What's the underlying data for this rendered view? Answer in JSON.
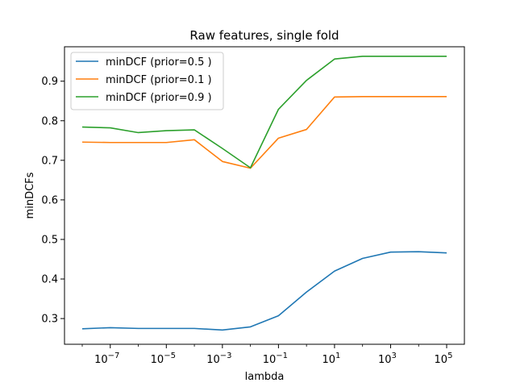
{
  "chart_data": {
    "type": "line",
    "title": "Raw features, single fold",
    "xlabel": "lambda",
    "ylabel": "minDCFs",
    "x_scale": "log",
    "x": [
      1e-08,
      1e-07,
      1e-06,
      1e-05,
      0.0001,
      0.001,
      0.01,
      0.1,
      1,
      10,
      100,
      1000,
      10000,
      100000
    ],
    "x_ticks": [
      1e-07,
      1e-05,
      0.001,
      0.1,
      10,
      1000,
      100000
    ],
    "x_tick_labels": [
      {
        "base": "10",
        "exp": "−7"
      },
      {
        "base": "10",
        "exp": "−5"
      },
      {
        "base": "10",
        "exp": "−3"
      },
      {
        "base": "10",
        "exp": "−1"
      },
      {
        "base": "10",
        "exp": "1"
      },
      {
        "base": "10",
        "exp": "3"
      },
      {
        "base": "10",
        "exp": "5"
      }
    ],
    "y_ticks": [
      0.3,
      0.4,
      0.5,
      0.6,
      0.7,
      0.8,
      0.9
    ],
    "y_tick_labels": [
      "0.3",
      "0.4",
      "0.5",
      "0.6",
      "0.7",
      "0.8",
      "0.9"
    ],
    "ylim": [
      0.235,
      0.987
    ],
    "grid": false,
    "legend_position": "top-left",
    "series": [
      {
        "name": "minDCF (prior=0.5 )",
        "color": "#1f77b4",
        "values": [
          0.274,
          0.277,
          0.275,
          0.275,
          0.275,
          0.271,
          0.279,
          0.307,
          0.367,
          0.42,
          0.452,
          0.468,
          0.469,
          0.466
        ]
      },
      {
        "name": "minDCF (prior=0.1 )",
        "color": "#ff7f0e",
        "values": [
          0.746,
          0.745,
          0.745,
          0.745,
          0.752,
          0.697,
          0.68,
          0.756,
          0.778,
          0.86,
          0.861,
          0.861,
          0.861,
          0.861
        ]
      },
      {
        "name": "minDCF (prior=0.9 )",
        "color": "#2ca02c",
        "values": [
          0.784,
          0.782,
          0.77,
          0.775,
          0.777,
          0.73,
          0.681,
          0.829,
          0.902,
          0.956,
          0.963,
          0.963,
          0.963,
          0.963
        ]
      }
    ]
  }
}
